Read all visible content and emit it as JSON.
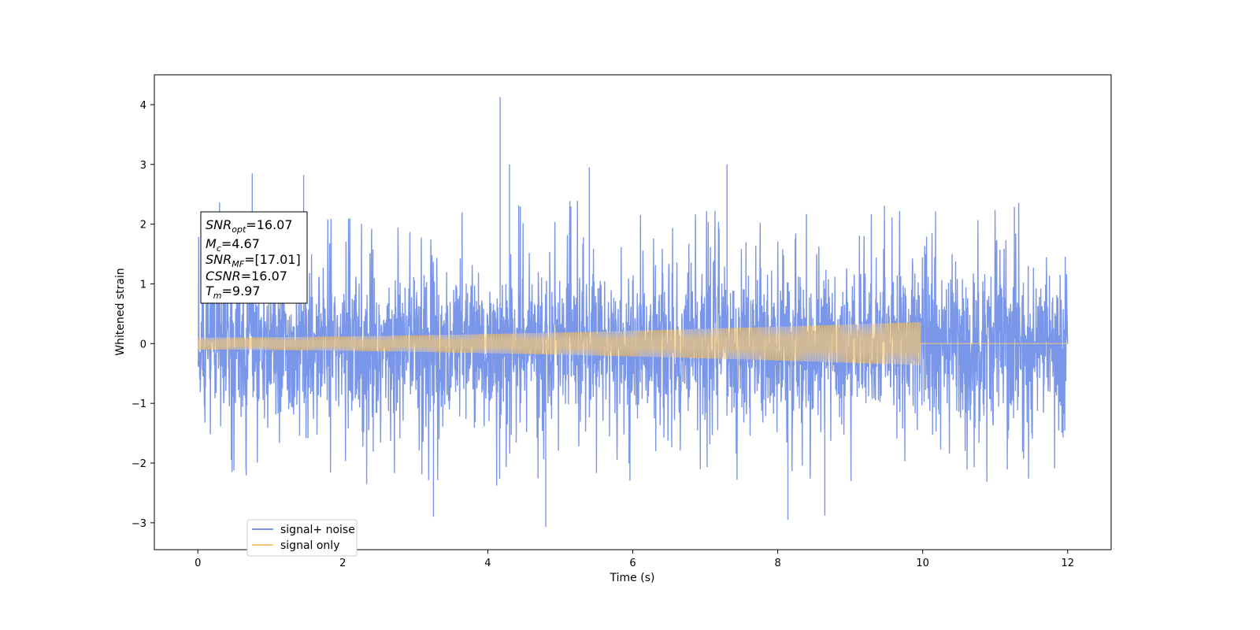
{
  "chart_data": {
    "type": "line",
    "title": "",
    "xlabel": "Time (s)",
    "ylabel": "Whitened strain",
    "xlim": [
      -0.6,
      12.6
    ],
    "ylim": [
      -3.45,
      4.5
    ],
    "x_ticks": [
      0,
      2,
      4,
      6,
      8,
      10,
      12
    ],
    "y_ticks": [
      -3,
      -2,
      -1,
      0,
      1,
      2,
      3,
      4
    ],
    "x_tick_labels": [
      "0",
      "2",
      "4",
      "6",
      "8",
      "10",
      "12"
    ],
    "y_tick_labels": [
      "−3",
      "−2",
      "−1",
      "0",
      "1",
      "2",
      "3",
      "4"
    ],
    "grid": false,
    "legend_position": "lower-left",
    "series": [
      {
        "name": "signal+ noise",
        "color": "#7a96e8",
        "kind": "noise",
        "x_range": [
          0,
          12
        ],
        "typical_max": 1.8,
        "typical_min": -1.8,
        "peaks": [
          {
            "x": 4.17,
            "y": 4.13
          },
          {
            "x": 0.75,
            "y": 2.85
          },
          {
            "x": 1.46,
            "y": 2.82
          },
          {
            "x": 4.3,
            "y": 3.0
          },
          {
            "x": 5.4,
            "y": 2.95
          },
          {
            "x": 7.3,
            "y": 3.0
          },
          {
            "x": 3.25,
            "y": -2.9
          },
          {
            "x": 4.8,
            "y": -3.07
          },
          {
            "x": 8.14,
            "y": -2.95
          },
          {
            "x": 8.65,
            "y": -2.88
          }
        ]
      },
      {
        "name": "signal only",
        "color": "#f5c878",
        "kind": "chirp",
        "x_range": [
          0,
          12
        ],
        "start_amplitude": 0.1,
        "end_amplitude": 0.36,
        "merger_time": 9.97,
        "post_merger_value": 0.0
      }
    ],
    "annotation": {
      "lines": [
        {
          "base": "SNR",
          "sub": "opt",
          "value": "=16.07"
        },
        {
          "base": "M",
          "sub": "c",
          "value": "=4.67"
        },
        {
          "base": "SNR",
          "sub": "MF",
          "value": "=[17.01]"
        },
        {
          "base": "CSNR",
          "sub": "",
          "value": "=16.07"
        },
        {
          "base": "T",
          "sub": "m",
          "value": "=9.97"
        }
      ]
    }
  }
}
